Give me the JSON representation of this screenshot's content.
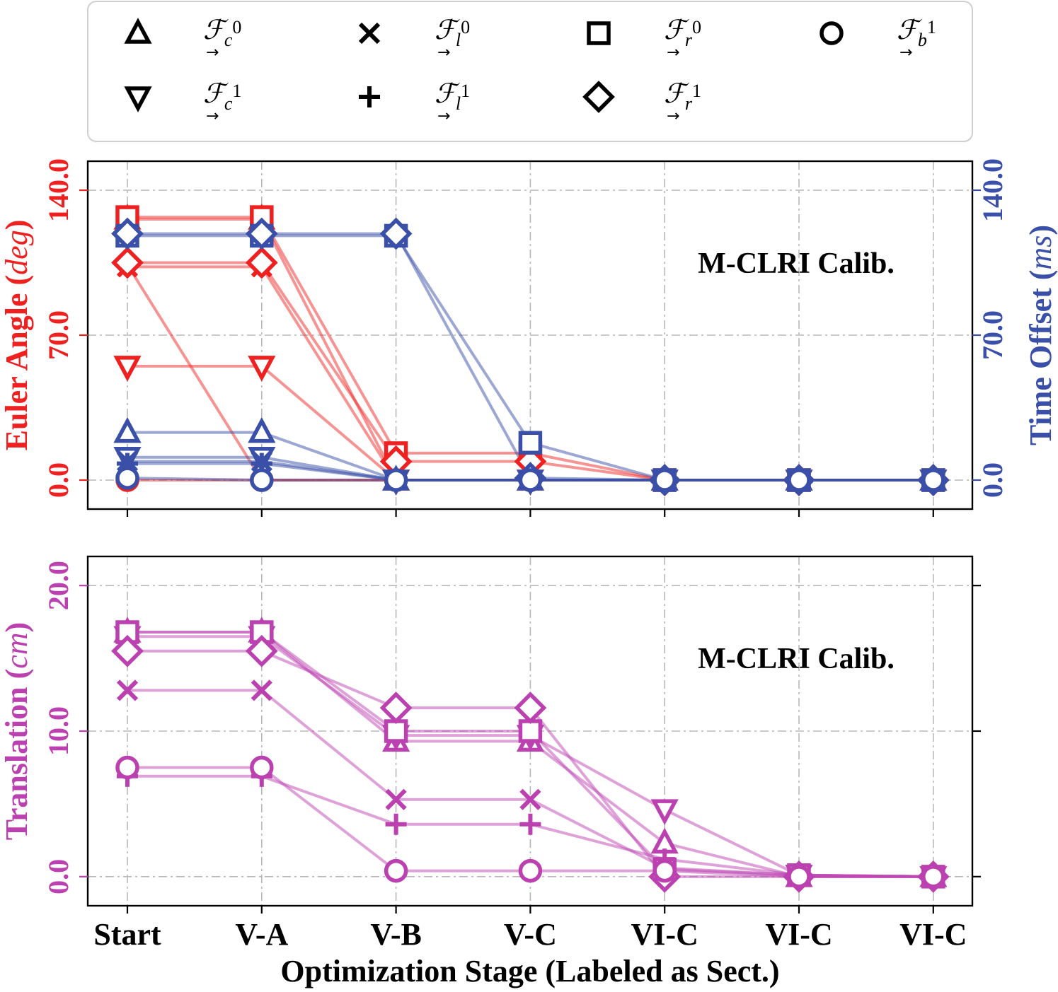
{
  "legend": {
    "entries": [
      {
        "marker": "triangle-up",
        "base": "ℱ",
        "sub": "c",
        "sup": "0"
      },
      {
        "marker": "x",
        "base": "ℱ",
        "sub": "l",
        "sup": "0"
      },
      {
        "marker": "square",
        "base": "ℱ",
        "sub": "r",
        "sup": "0"
      },
      {
        "marker": "circle",
        "base": "ℱ",
        "sub": "b",
        "sup": "1"
      },
      {
        "marker": "triangle-down",
        "base": "ℱ",
        "sub": "c",
        "sup": "1"
      },
      {
        "marker": "plus",
        "base": "ℱ",
        "sub": "l",
        "sup": "1"
      },
      {
        "marker": "diamond",
        "base": "ℱ",
        "sub": "r",
        "sup": "1"
      }
    ],
    "arrow": "→"
  },
  "colors": {
    "euler": "#ee2020",
    "time": "#3a4fa8",
    "translation": "#bb40b0",
    "euler_line": "rgba(238,40,40,0.5)",
    "time_line": "rgba(58,79,168,0.5)",
    "translation_line": "rgba(190,70,180,0.5)"
  },
  "chart_data": [
    {
      "type": "line",
      "title": "",
      "annotation": "M-CLRI Calib.",
      "categories": [
        "Start",
        "V-A",
        "V-B",
        "V-C",
        "VI-C",
        "VI-C",
        "VI-C"
      ],
      "xlabel": "Optimization Stage (Labeled as Sect.)",
      "ylabel": {
        "main": "Euler Angle (",
        "unit": "deg",
        "close": ")"
      },
      "ylim": [
        -14,
        154
      ],
      "yticks": [
        "0.0",
        "70.0",
        "140.0"
      ],
      "yticks_values": [
        0,
        70,
        140
      ],
      "y2label": {
        "main": "Time Offset (",
        "unit": "ms",
        "close": ")"
      },
      "y2lim": [
        -14,
        154
      ],
      "y2ticks": [
        "0.0",
        "70.0",
        "140.0"
      ],
      "y2ticks_values": [
        0,
        70,
        140
      ],
      "grid": true,
      "series": [
        {
          "name": "Euler F_c0",
          "axis": "left",
          "marker": "triangle-up",
          "values": [
            126,
            126,
            0,
            0,
            0,
            0,
            0
          ]
        },
        {
          "name": "Euler F_c1",
          "axis": "left",
          "marker": "triangle-down",
          "values": [
            55,
            55,
            0,
            0,
            0,
            0,
            0
          ]
        },
        {
          "name": "Euler F_l0",
          "axis": "left",
          "marker": "x",
          "values": [
            103,
            103,
            0,
            0,
            0,
            0,
            0
          ]
        },
        {
          "name": "Euler F_l1",
          "axis": "left",
          "marker": "plus",
          "values": [
            104,
            0,
            0,
            0,
            0,
            0,
            0
          ]
        },
        {
          "name": "Euler F_r0",
          "axis": "left",
          "marker": "square",
          "values": [
            127,
            127,
            13,
            13,
            0,
            0,
            0
          ]
        },
        {
          "name": "Euler F_r1",
          "axis": "left",
          "marker": "diamond",
          "values": [
            105,
            105,
            9,
            9,
            0,
            0,
            0
          ]
        },
        {
          "name": "Euler F_b1",
          "axis": "left",
          "marker": "circle",
          "values": [
            0,
            0,
            0,
            0,
            0,
            0,
            0
          ]
        },
        {
          "name": "Time F_c0",
          "axis": "right",
          "marker": "triangle-up",
          "values": [
            23,
            23,
            0,
            0,
            0,
            0,
            0
          ]
        },
        {
          "name": "Time F_c1",
          "axis": "right",
          "marker": "triangle-down",
          "values": [
            11,
            11,
            0,
            0,
            0,
            0,
            0
          ]
        },
        {
          "name": "Time F_l0",
          "axis": "right",
          "marker": "x",
          "values": [
            9,
            9,
            0,
            0,
            0,
            0,
            0
          ]
        },
        {
          "name": "Time F_l1",
          "axis": "right",
          "marker": "plus",
          "values": [
            8,
            8,
            0,
            0,
            0,
            0,
            0
          ]
        },
        {
          "name": "Time F_r0",
          "axis": "right",
          "marker": "square",
          "values": [
            118,
            118,
            118,
            18,
            0,
            0,
            0
          ]
        },
        {
          "name": "Time F_r1",
          "axis": "right",
          "marker": "diamond",
          "values": [
            119,
            119,
            119,
            1,
            0,
            0,
            0
          ]
        },
        {
          "name": "Time F_b1",
          "axis": "right",
          "marker": "circle",
          "values": [
            1,
            0,
            0,
            0,
            0,
            0,
            0
          ]
        }
      ]
    },
    {
      "type": "line",
      "title": "",
      "annotation": "M-CLRI Calib.",
      "categories": [
        "Start",
        "V-A",
        "V-B",
        "V-C",
        "VI-C",
        "VI-C",
        "VI-C"
      ],
      "xlabel": "Optimization Stage (Labeled as Sect.)",
      "ylabel": {
        "main": "Translation (",
        "unit": "cm",
        "close": ")"
      },
      "ylim": [
        -2,
        22
      ],
      "yticks": [
        "0.0",
        "10.0",
        "20.0"
      ],
      "yticks_values": [
        0,
        10,
        20
      ],
      "grid": true,
      "series": [
        {
          "name": "Trans F_c0",
          "marker": "triangle-up",
          "values": [
            16.8,
            16.8,
            9.3,
            9.3,
            2.3,
            0,
            0
          ]
        },
        {
          "name": "Trans F_c1",
          "marker": "triangle-down",
          "values": [
            16.5,
            16.5,
            9.7,
            9.7,
            4.6,
            0.1,
            0
          ]
        },
        {
          "name": "Trans F_l0",
          "marker": "x",
          "values": [
            12.8,
            12.8,
            5.3,
            5.3,
            0.6,
            0.1,
            0
          ]
        },
        {
          "name": "Trans F_l1",
          "marker": "plus",
          "values": [
            6.9,
            6.9,
            3.6,
            3.6,
            1.2,
            0.1,
            0
          ]
        },
        {
          "name": "Trans F_r0",
          "marker": "square",
          "values": [
            16.8,
            16.8,
            10.0,
            10.0,
            0.5,
            0.1,
            0
          ]
        },
        {
          "name": "Trans F_r1",
          "marker": "diamond",
          "values": [
            15.5,
            15.5,
            11.6,
            11.6,
            0,
            0,
            0
          ]
        },
        {
          "name": "Trans F_b1",
          "marker": "circle",
          "values": [
            7.5,
            7.5,
            0.4,
            0.4,
            0.4,
            0,
            0
          ]
        }
      ]
    }
  ]
}
